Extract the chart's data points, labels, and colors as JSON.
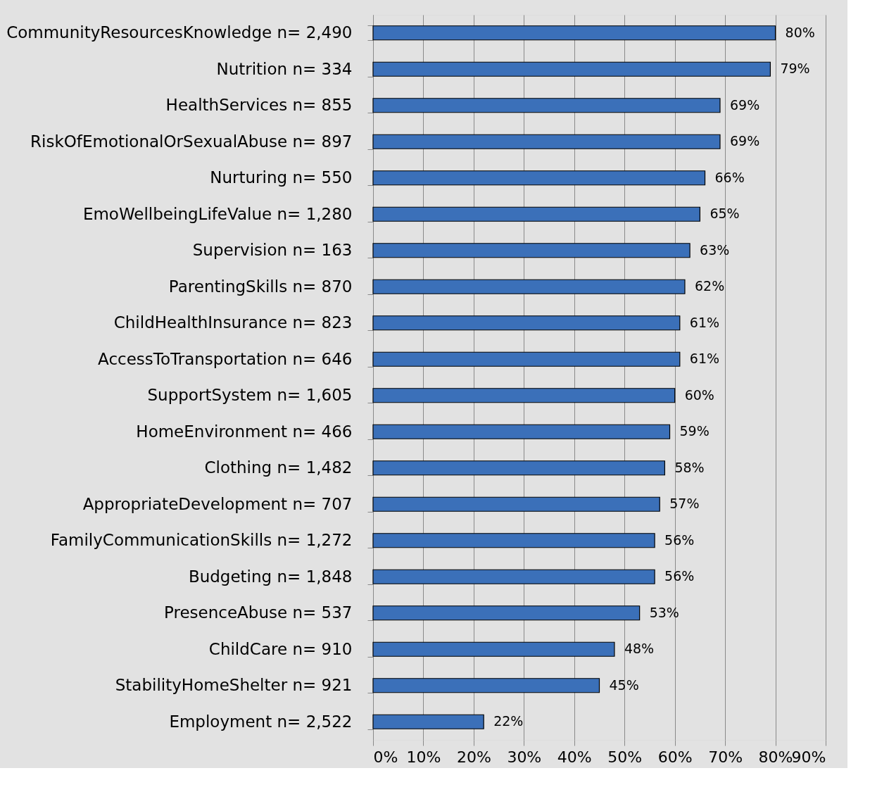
{
  "chart_data": {
    "type": "bar",
    "orientation": "horizontal",
    "categories": [
      "CommunityResourcesKnowledge n= 2,490",
      "Nutrition n= 334",
      "HealthServices n= 855",
      "RiskOfEmotionalOrSexualAbuse n= 897",
      "Nurturing n= 550",
      "EmoWellbeingLifeValue n= 1,280",
      "Supervision n= 163",
      "ParentingSkills n= 870",
      "ChildHealthInsurance n= 823",
      "AccessToTransportation n= 646",
      "SupportSystem n= 1,605",
      "HomeEnvironment n= 466",
      "Clothing n= 1,482",
      "AppropriateDevelopment n= 707",
      "FamilyCommunicationSkills n= 1,272",
      "Budgeting n= 1,848",
      "PresenceAbuse n= 537",
      "ChildCare n= 910",
      "StabilityHomeShelter n= 921",
      "Employment n= 2,522"
    ],
    "values": [
      80,
      79,
      69,
      69,
      66,
      65,
      63,
      62,
      61,
      61,
      60,
      59,
      58,
      57,
      56,
      56,
      53,
      48,
      45,
      22
    ],
    "value_labels": [
      "80%",
      "79%",
      "69%",
      "69%",
      "66%",
      "65%",
      "63%",
      "62%",
      "61%",
      "61%",
      "60%",
      "59%",
      "58%",
      "57%",
      "56%",
      "56%",
      "53%",
      "48%",
      "45%",
      "22%"
    ],
    "color": "#3b70b9",
    "xlim": [
      0,
      90
    ],
    "xticks": [
      {
        "value": 0,
        "label": "0%"
      },
      {
        "value": 10,
        "label": "10%"
      },
      {
        "value": 20,
        "label": "20%"
      },
      {
        "value": 30,
        "label": "30%"
      },
      {
        "value": 40,
        "label": "40%"
      },
      {
        "value": 50,
        "label": "50%"
      },
      {
        "value": 60,
        "label": "60%"
      },
      {
        "value": 70,
        "label": "70%"
      },
      {
        "value": 80,
        "label": "80%"
      },
      {
        "value": 90,
        "label": "90%"
      }
    ],
    "grid": "x"
  }
}
